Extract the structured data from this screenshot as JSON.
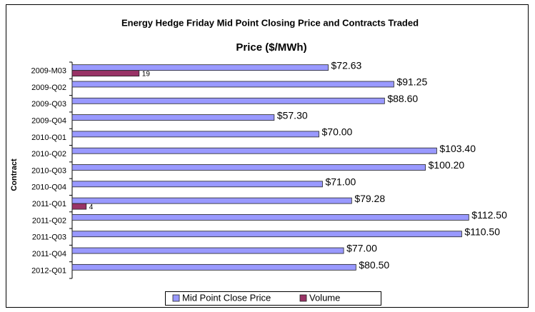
{
  "chart_data": {
    "type": "bar",
    "orientation": "horizontal",
    "title": "Energy Hedge Friday Mid Point Closing Price and Contracts Traded",
    "subtitle": "Price ($/MWh)",
    "y_label": "Contract",
    "categories": [
      "2009-M03",
      "2009-Q02",
      "2009-Q03",
      "2009-Q04",
      "2010-Q01",
      "2010-Q02",
      "2010-Q03",
      "2010-Q04",
      "2011-Q01",
      "2011-Q02",
      "2011-Q03",
      "2011-Q04",
      "2012-Q01"
    ],
    "series": [
      {
        "name": "Mid Point Close Price",
        "color": "#9999ff",
        "values": [
          72.63,
          91.25,
          88.6,
          57.3,
          70.0,
          103.4,
          100.2,
          71.0,
          79.28,
          112.5,
          110.5,
          77.0,
          80.5
        ],
        "value_labels": [
          "$72.63",
          "$91.25",
          "$88.60",
          "$57.30",
          "$70.00",
          "$103.40",
          "$100.20",
          "$71.00",
          "$79.28",
          "$112.50",
          "$110.50",
          "$77.00",
          "$80.50"
        ]
      },
      {
        "name": "Volume",
        "color": "#993366",
        "values": [
          19,
          null,
          null,
          null,
          null,
          null,
          null,
          null,
          4,
          null,
          null,
          null,
          null
        ]
      }
    ],
    "xlim": [
      0,
      125
    ],
    "legend": "bottom"
  }
}
